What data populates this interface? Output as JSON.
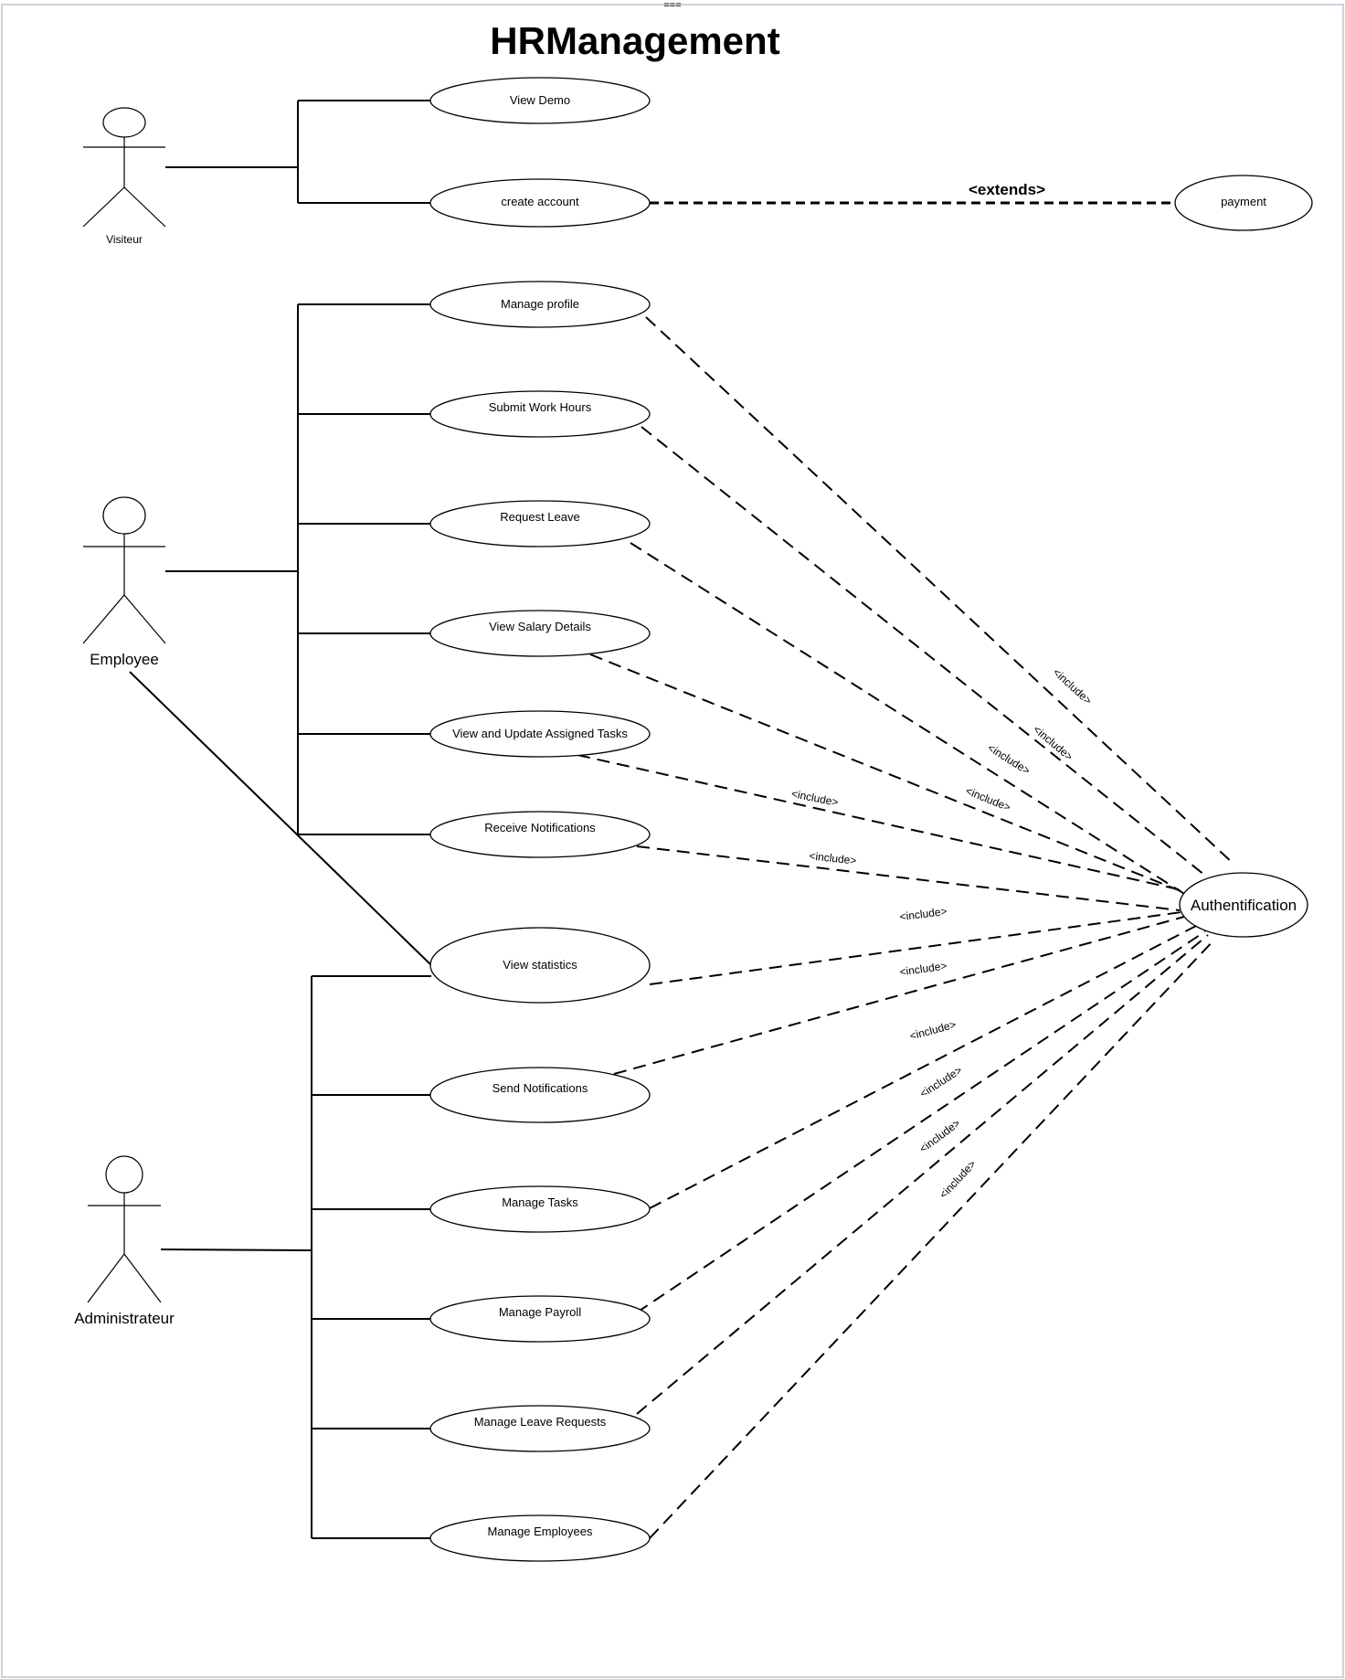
{
  "diagram": {
    "top_marker": "===",
    "title": "HRManagement",
    "actors": {
      "visiteur": "Visiteur",
      "employee": "Employee",
      "administrateur": "Administrateur"
    },
    "use_cases": {
      "view_demo": "View Demo",
      "create_account": "create account",
      "payment": "payment",
      "manage_profile": "Manage profile",
      "submit_work_hours": "Submit Work Hours",
      "request_leave": "Request Leave",
      "view_salary_details": "View Salary Details",
      "view_update_tasks": "View and Update Assigned Tasks",
      "receive_notifications": "Receive Notifications",
      "view_statistics": "View statistics",
      "send_notifications": "Send Notifications",
      "manage_tasks": "Manage Tasks",
      "manage_payroll": "Manage Payroll",
      "manage_leave_requests": "Manage Leave Requests",
      "manage_employees": "Manage Employees",
      "authentification": "Authentification"
    },
    "relations": {
      "extends": "<extends>",
      "include": "<include>"
    }
  }
}
